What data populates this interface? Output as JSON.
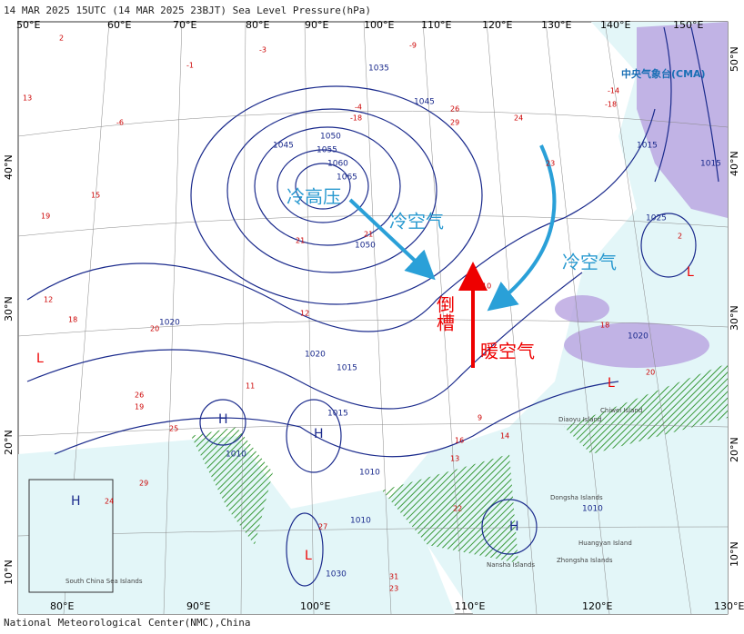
{
  "header": {
    "title": "14 MAR 2025 15UTC  (14 MAR 2025 23BJT) Sea Level Pressure(hPa)"
  },
  "footer": {
    "credit": "National Meteorological Center(NMC),China"
  },
  "logo": {
    "text": "中央气象台(CMA)"
  },
  "grid_labels": {
    "top": [
      "50°E",
      "60°E",
      "70°E",
      "80°E",
      "90°E",
      "100°E",
      "110°E",
      "120°E",
      "130°E",
      "140°E",
      "150°E"
    ],
    "bottom": [
      "80°E",
      "90°E",
      "100°E",
      "110°E",
      "120°E",
      "130°E"
    ],
    "left": [
      "40°N",
      "30°N",
      "20°N",
      "10°N"
    ],
    "right": [
      "50°N",
      "40°N",
      "30°N",
      "20°N",
      "10°N"
    ]
  },
  "isobar_labels": [
    "1035",
    "1045",
    "1050",
    "1055",
    "1060",
    "1065",
    "1045",
    "1050",
    "1020",
    "1020",
    "1015",
    "1015",
    "1010",
    "1010",
    "1010",
    "1030",
    "1025",
    "1015",
    "1015",
    "1020",
    "1010"
  ],
  "annotations": [
    "冷高压",
    "冷空气",
    "冷空气",
    "倒槽",
    "暖空气"
  ],
  "pressure_centers": [
    "H",
    "H",
    "H",
    "H",
    "L",
    "L",
    "L",
    "L"
  ],
  "place_labels": [
    "South China Sea Islands",
    "Chiwei Island",
    "Diaoyu Island",
    "Dongsha Islands",
    "Huangyan Island",
    "Zhongsha Islands",
    "Nansha Islands"
  ],
  "station_values": [
    "-3",
    "-9",
    "2",
    "-1",
    "13",
    "-4",
    "-18",
    "26",
    "29",
    "-14",
    "-18",
    "21",
    "24",
    "23",
    "15",
    "19",
    "18",
    "12",
    "20",
    "26",
    "19",
    "25",
    "27",
    "29",
    "24",
    "31",
    "23",
    "20",
    "18",
    "12",
    "10",
    "16",
    "14",
    "22",
    "13",
    "9",
    "11",
    "21",
    "2",
    "-6"
  ]
}
